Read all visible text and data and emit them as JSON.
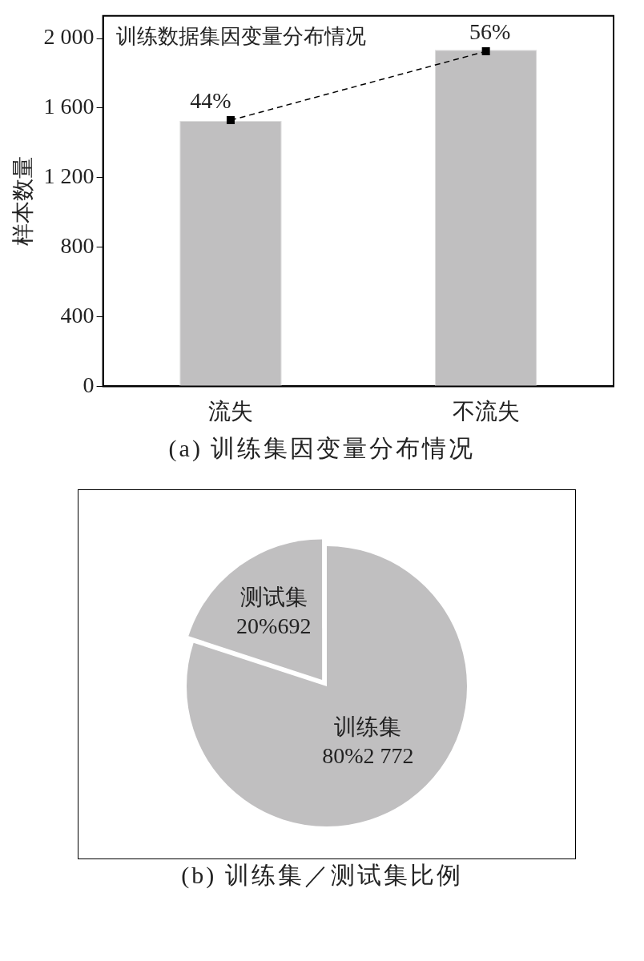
{
  "chart_data": [
    {
      "type": "bar",
      "title": "训练数据集因变量分布情况",
      "ylabel": "样本数量",
      "categories": [
        "流失",
        "不流失"
      ],
      "series": [
        {
          "type": "bar",
          "color": "#c0bfc0",
          "values": [
            1526,
            1935
          ]
        },
        {
          "type": "line",
          "color": "#000000",
          "values": [
            1530,
            1926
          ],
          "marker": "square",
          "line_style": "dashed"
        }
      ],
      "ylim": [
        0,
        2130
      ],
      "yticks": [
        0,
        400,
        800,
        {
          "value": 1200,
          "label": "1 200"
        },
        {
          "value": 1600,
          "label": "1 600"
        },
        {
          "value": 2000,
          "label": "2 000"
        }
      ],
      "grid": false,
      "legend": false,
      "annotations": [
        {
          "text": "44%",
          "x": "流失",
          "y": 1530
        },
        {
          "text": "56%",
          "x": "不流失",
          "y": 1926
        },
        "(a) 训练集因变量分布情况"
      ]
    },
    {
      "type": "pie",
      "categories": [
        "训练集",
        "测试集"
      ],
      "values": [
        2772,
        692
      ],
      "colors": [
        "#c0bfc0",
        "#c0bfc0"
      ],
      "value_labels": [
        "80%2 772",
        "20%692"
      ],
      "legend": false,
      "annotations": [
        "(b) 训练集／测试集比例"
      ]
    }
  ]
}
